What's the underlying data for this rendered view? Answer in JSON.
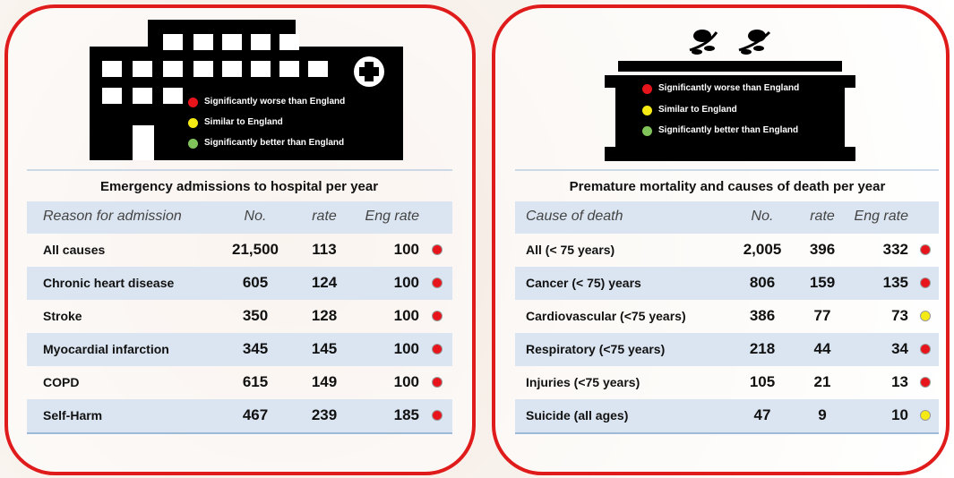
{
  "left": {
    "legend": [
      {
        "label": "Significantly worse than England",
        "color": "#e8141b"
      },
      {
        "label": "Similar to England",
        "color": "#f5ea14"
      },
      {
        "label": "Significantly better than England",
        "color": "#7fc35a"
      }
    ],
    "table": {
      "title": "Emergency admissions to hospital per year",
      "columns": [
        "Reason for admission",
        "No.",
        "rate",
        "Eng rate"
      ],
      "rows": [
        {
          "cells": [
            "All causes",
            "21,500",
            "113",
            "100"
          ],
          "color": "#e8141b"
        },
        {
          "cells": [
            "Chronic heart disease",
            "605",
            "124",
            "100"
          ],
          "color": "#e8141b"
        },
        {
          "cells": [
            "Stroke",
            "350",
            "128",
            "100"
          ],
          "color": "#e8141b"
        },
        {
          "cells": [
            "Myocardial infarction",
            "345",
            "145",
            "100"
          ],
          "color": "#e8141b"
        },
        {
          "cells": [
            "COPD",
            "615",
            "149",
            "100"
          ],
          "color": "#e8141b"
        },
        {
          "cells": [
            "Self-Harm",
            "467",
            "239",
            "185"
          ],
          "color": "#e8141b"
        }
      ]
    }
  },
  "right": {
    "legend": [
      {
        "label": "Significantly worse than England",
        "color": "#e8141b"
      },
      {
        "label": "Similar to England",
        "color": "#f5ea14"
      },
      {
        "label": "Significantly better than England",
        "color": "#7fc35a"
      }
    ],
    "table": {
      "title": "Premature mortality and causes of death per year",
      "columns": [
        "Cause of death",
        "No.",
        "rate",
        "Eng rate"
      ],
      "rows": [
        {
          "cells": [
            "All (< 75 years)",
            "2,005",
            "396",
            "332"
          ],
          "color": "#e8141b"
        },
        {
          "cells": [
            "Cancer (< 75) years",
            "806",
            "159",
            "135"
          ],
          "color": "#e8141b"
        },
        {
          "cells": [
            "Cardiovascular (<75 years)",
            "386",
            "77",
            "73"
          ],
          "color": "#f5ea14"
        },
        {
          "cells": [
            "Respiratory (<75 years)",
            "218",
            "44",
            "34"
          ],
          "color": "#e8141b"
        },
        {
          "cells": [
            "Injuries (<75 years)",
            "105",
            "21",
            "13"
          ],
          "color": "#e8141b"
        },
        {
          "cells": [
            "Suicide (all ages)",
            "47",
            "9",
            "10"
          ],
          "color": "#f5ea14"
        }
      ]
    }
  }
}
